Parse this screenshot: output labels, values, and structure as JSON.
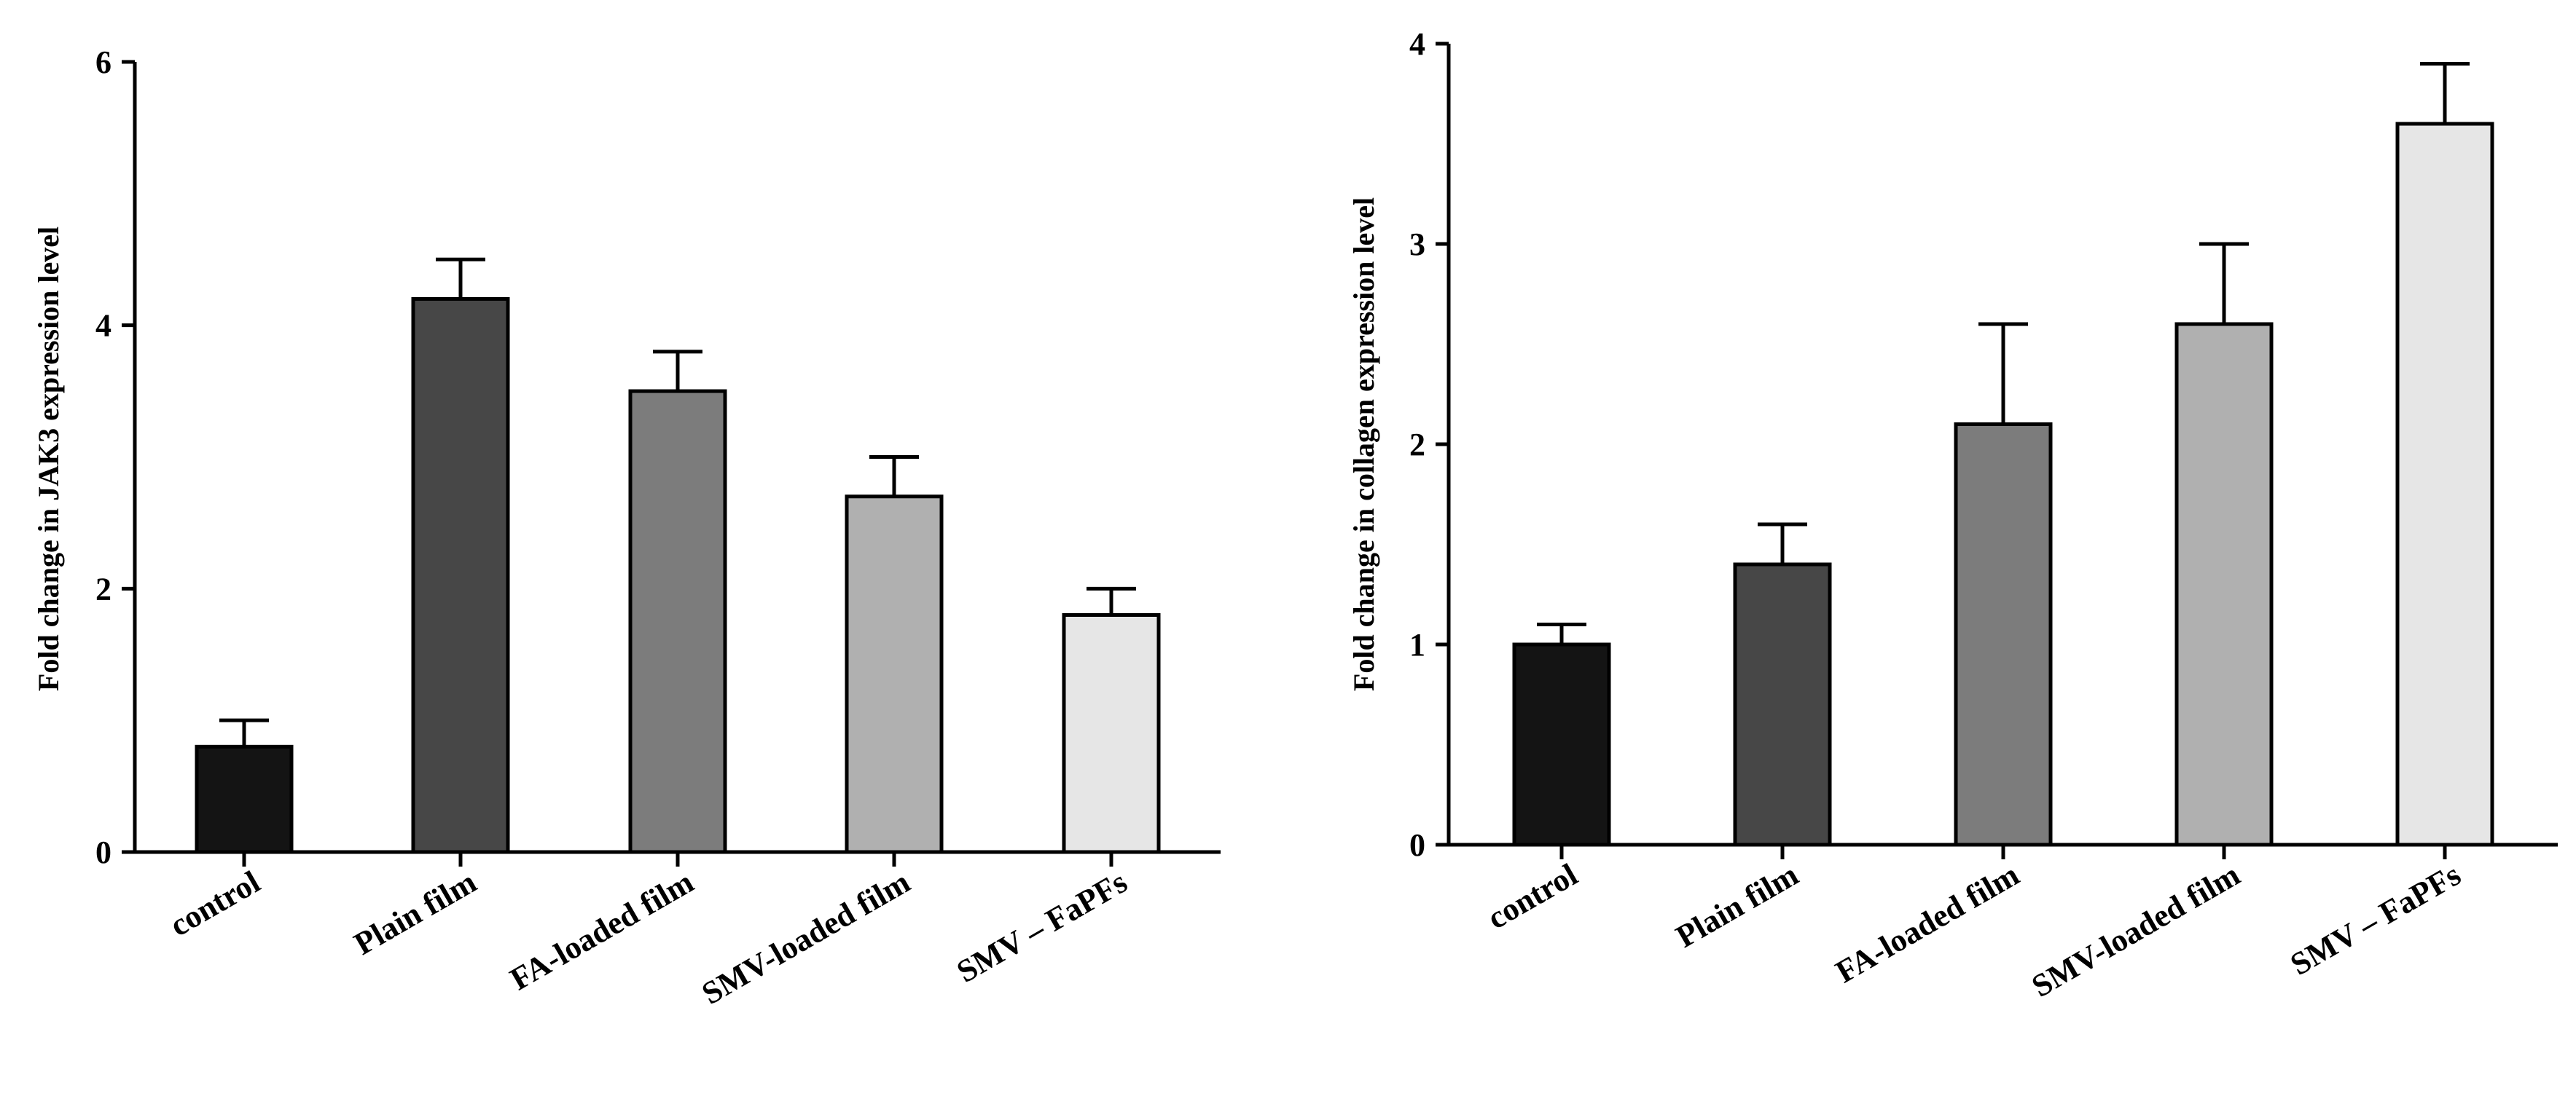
{
  "chart_data": [
    {
      "type": "bar",
      "categories": [
        "control",
        "Plain film",
        "FA-loaded film",
        "SMV-loaded film",
        "SMV – FaPFs"
      ],
      "values": [
        0.8,
        4.2,
        3.5,
        2.7,
        1.8
      ],
      "errors": [
        0.2,
        0.3,
        0.3,
        0.3,
        0.2
      ],
      "ylabel": "Fold change in JAK3  expression level",
      "ylim": [
        0,
        6
      ],
      "yticks": [
        "0",
        "2",
        "4",
        "6"
      ],
      "ytick_values": [
        0,
        2,
        4,
        6
      ],
      "colors": [
        "#141414",
        "#474747",
        "#7c7c7c",
        "#b0b0b0",
        "#e6e6e6"
      ],
      "grid": false
    },
    {
      "type": "bar",
      "categories": [
        "control",
        "Plain film",
        "FA-loaded film",
        "SMV-loaded film",
        "SMV – FaPFs"
      ],
      "values": [
        1.0,
        1.4,
        2.1,
        2.6,
        3.6
      ],
      "errors": [
        0.1,
        0.2,
        0.5,
        0.4,
        0.3
      ],
      "ylabel": "Fold change in collagen expression level",
      "ylim": [
        0,
        4
      ],
      "yticks": [
        "0",
        "1",
        "2",
        "3",
        "4"
      ],
      "ytick_values": [
        0,
        1,
        2,
        3,
        4
      ],
      "colors": [
        "#141414",
        "#474747",
        "#7c7c7c",
        "#b0b0b0",
        "#e6e6e6"
      ],
      "grid": false
    }
  ]
}
